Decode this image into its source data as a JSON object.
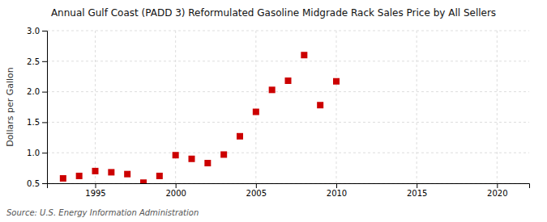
{
  "chart_data": {
    "type": "scatter",
    "title": "Annual Gulf Coast (PADD 3) Reformulated Gasoline Midgrade Rack Sales Price by All Sellers",
    "y_label": "Dollars per Gallon",
    "source": "Source: U.S. Energy Information Administration",
    "x": [
      1993,
      1994,
      1995,
      1996,
      1997,
      1998,
      1999,
      2000,
      2001,
      2002,
      2003,
      2004,
      2005,
      2006,
      2007,
      2008,
      2009,
      2010
    ],
    "values": [
      0.58,
      0.62,
      0.7,
      0.68,
      0.65,
      0.51,
      0.62,
      0.96,
      0.9,
      0.83,
      0.97,
      1.27,
      1.67,
      2.03,
      2.18,
      2.6,
      1.78,
      2.17
    ],
    "xlim": [
      1992,
      2022
    ],
    "ylim": [
      0.5,
      3.0
    ],
    "xticks": [
      1995,
      2000,
      2005,
      2010,
      2015,
      2020
    ],
    "yticks": [
      0.5,
      {
        "value": 1,
        "label": "1.0"
      },
      1.5,
      {
        "value": 2,
        "label": "2.0"
      },
      2.5,
      {
        "value": 3,
        "label": "3.0"
      }
    ],
    "color": "#cc0000",
    "marker": "square",
    "grid": true
  }
}
